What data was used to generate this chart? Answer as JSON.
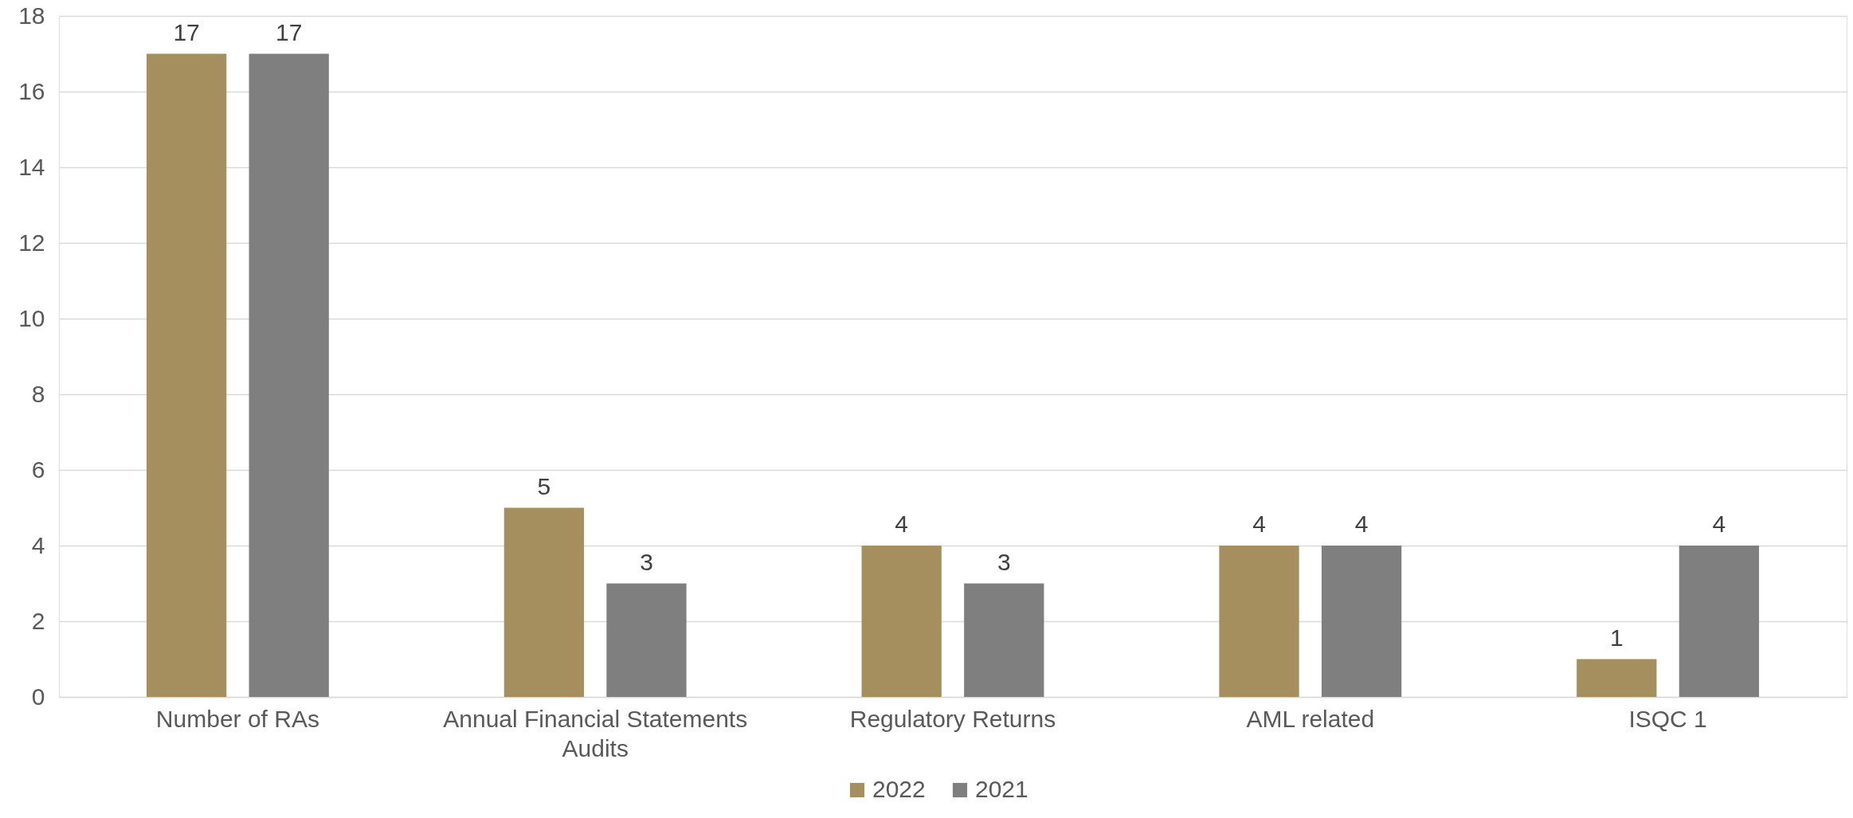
{
  "chart_data": {
    "type": "bar",
    "categories": [
      "Number of RAs",
      "Annual Financial Statements Audits",
      "Regulatory Returns",
      "AML related",
      "ISQC 1"
    ],
    "series": [
      {
        "name": "2022",
        "color": "#a58f5f",
        "values": [
          17,
          5,
          4,
          4,
          1
        ]
      },
      {
        "name": "2021",
        "color": "#7f7f7f",
        "values": [
          17,
          3,
          3,
          4,
          4
        ]
      }
    ],
    "ylim": [
      0,
      18
    ],
    "yticks": [
      0,
      2,
      4,
      6,
      8,
      10,
      12,
      14,
      16,
      18
    ],
    "grid": "y",
    "data_labels": true,
    "legend": "bottom"
  }
}
